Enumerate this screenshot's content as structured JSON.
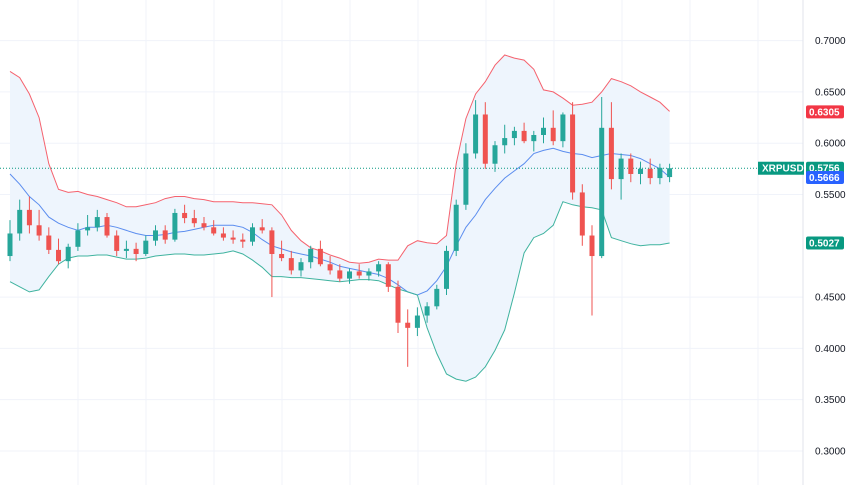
{
  "chart_data": {
    "type": "candlestick",
    "symbol": "XRPUSDT",
    "y_range": [
      0.2668,
      0.7396
    ],
    "y_ticks": [
      "0.7000",
      "0.6500",
      "0.6000",
      "0.5500",
      "0.4500",
      "0.4000",
      "0.3500",
      "0.3000"
    ],
    "grid": true,
    "price_badges": [
      {
        "label": "",
        "value": "0.6305",
        "y": 0.6305,
        "color": "#f23645"
      },
      {
        "label": "XRPUSDT",
        "value": "0.5756",
        "y": 0.5756,
        "color": "#089981"
      },
      {
        "label": "",
        "value": "0.5666",
        "y": 0.5666,
        "color": "#2962ff"
      },
      {
        "label": "",
        "value": "0.5027",
        "y": 0.5027,
        "color": "#089981"
      }
    ],
    "last_price": 0.5756,
    "colors": {
      "up": "#26a69a",
      "down": "#ef5350",
      "upper_band": "#f5626e",
      "middle_band": "#5b8def",
      "lower_band": "#3fb39f",
      "band_fill": "#eef5fd",
      "grid": "#f0f3fa",
      "last_price_line": "#089981"
    },
    "candles": [
      [
        0.49,
        0.525,
        0.485,
        0.512
      ],
      [
        0.512,
        0.545,
        0.505,
        0.535
      ],
      [
        0.535,
        0.548,
        0.512,
        0.52
      ],
      [
        0.52,
        0.535,
        0.505,
        0.51
      ],
      [
        0.51,
        0.518,
        0.492,
        0.496
      ],
      [
        0.496,
        0.507,
        0.482,
        0.485
      ],
      [
        0.485,
        0.502,
        0.478,
        0.499
      ],
      [
        0.499,
        0.522,
        0.495,
        0.515
      ],
      [
        0.515,
        0.53,
        0.51,
        0.518
      ],
      [
        0.518,
        0.535,
        0.514,
        0.528
      ],
      [
        0.528,
        0.532,
        0.508,
        0.51
      ],
      [
        0.51,
        0.515,
        0.49,
        0.495
      ],
      [
        0.495,
        0.505,
        0.488,
        0.497
      ],
      [
        0.497,
        0.503,
        0.485,
        0.492
      ],
      [
        0.492,
        0.51,
        0.49,
        0.505
      ],
      [
        0.505,
        0.52,
        0.5,
        0.515
      ],
      [
        0.515,
        0.52,
        0.502,
        0.506
      ],
      [
        0.506,
        0.536,
        0.504,
        0.532
      ],
      [
        0.532,
        0.54,
        0.522,
        0.527
      ],
      [
        0.527,
        0.535,
        0.518,
        0.522
      ],
      [
        0.522,
        0.528,
        0.515,
        0.518
      ],
      [
        0.518,
        0.525,
        0.51,
        0.512
      ],
      [
        0.512,
        0.518,
        0.505,
        0.508
      ],
      [
        0.508,
        0.515,
        0.502,
        0.506
      ],
      [
        0.506,
        0.512,
        0.498,
        0.504
      ],
      [
        0.504,
        0.522,
        0.5,
        0.518
      ],
      [
        0.518,
        0.526,
        0.512,
        0.515
      ],
      [
        0.515,
        0.518,
        0.45,
        0.492
      ],
      [
        0.492,
        0.505,
        0.485,
        0.488
      ],
      [
        0.488,
        0.495,
        0.472,
        0.476
      ],
      [
        0.476,
        0.488,
        0.47,
        0.484
      ],
      [
        0.484,
        0.5,
        0.478,
        0.497
      ],
      [
        0.497,
        0.505,
        0.48,
        0.482
      ],
      [
        0.482,
        0.49,
        0.472,
        0.476
      ],
      [
        0.476,
        0.482,
        0.465,
        0.468
      ],
      [
        0.468,
        0.478,
        0.463,
        0.475
      ],
      [
        0.475,
        0.482,
        0.468,
        0.471
      ],
      [
        0.471,
        0.478,
        0.466,
        0.475
      ],
      [
        0.475,
        0.485,
        0.47,
        0.482
      ],
      [
        0.482,
        0.484,
        0.455,
        0.46
      ],
      [
        0.46,
        0.466,
        0.415,
        0.425
      ],
      [
        0.425,
        0.438,
        0.382,
        0.42
      ],
      [
        0.42,
        0.44,
        0.412,
        0.432
      ],
      [
        0.432,
        0.445,
        0.425,
        0.441
      ],
      [
        0.441,
        0.462,
        0.438,
        0.458
      ],
      [
        0.458,
        0.5,
        0.452,
        0.495
      ],
      [
        0.495,
        0.545,
        0.49,
        0.54
      ],
      [
        0.54,
        0.6,
        0.535,
        0.59
      ],
      [
        0.59,
        0.642,
        0.585,
        0.628
      ],
      [
        0.628,
        0.64,
        0.575,
        0.58
      ],
      [
        0.58,
        0.602,
        0.572,
        0.598
      ],
      [
        0.598,
        0.618,
        0.59,
        0.605
      ],
      [
        0.605,
        0.616,
        0.598,
        0.612
      ],
      [
        0.612,
        0.62,
        0.6,
        0.602
      ],
      [
        0.602,
        0.612,
        0.592,
        0.608
      ],
      [
        0.608,
        0.625,
        0.6,
        0.615
      ],
      [
        0.615,
        0.632,
        0.598,
        0.602
      ],
      [
        0.602,
        0.63,
        0.596,
        0.628
      ],
      [
        0.628,
        0.64,
        0.545,
        0.552
      ],
      [
        0.552,
        0.56,
        0.5,
        0.51
      ],
      [
        0.51,
        0.52,
        0.432,
        0.49
      ],
      [
        0.49,
        0.645,
        0.488,
        0.615
      ],
      [
        0.615,
        0.64,
        0.555,
        0.565
      ],
      [
        0.565,
        0.59,
        0.545,
        0.585
      ],
      [
        0.585,
        0.59,
        0.562,
        0.57
      ],
      [
        0.57,
        0.582,
        0.56,
        0.575
      ],
      [
        0.575,
        0.585,
        0.56,
        0.566
      ],
      [
        0.566,
        0.58,
        0.56,
        0.576
      ],
      [
        0.567,
        0.58,
        0.562,
        0.5756
      ]
    ],
    "bollinger": {
      "upper": [
        0.67,
        0.664,
        0.648,
        0.625,
        0.58,
        0.555,
        0.552,
        0.553,
        0.55,
        0.548,
        0.545,
        0.542,
        0.538,
        0.538,
        0.54,
        0.542,
        0.546,
        0.548,
        0.548,
        0.546,
        0.545,
        0.543,
        0.543,
        0.543,
        0.542,
        0.542,
        0.541,
        0.54,
        0.53,
        0.515,
        0.505,
        0.498,
        0.495,
        0.491,
        0.488,
        0.484,
        0.483,
        0.484,
        0.487,
        0.486,
        0.486,
        0.5,
        0.505,
        0.503,
        0.502,
        0.51,
        0.58,
        0.624,
        0.648,
        0.66,
        0.676,
        0.686,
        0.683,
        0.681,
        0.672,
        0.652,
        0.65,
        0.644,
        0.637,
        0.638,
        0.64,
        0.65,
        0.663,
        0.66,
        0.656,
        0.65,
        0.645,
        0.64,
        0.631
      ],
      "middle": [
        0.57,
        0.56,
        0.548,
        0.54,
        0.528,
        0.522,
        0.518,
        0.515,
        0.518,
        0.518,
        0.52,
        0.518,
        0.515,
        0.512,
        0.51,
        0.51,
        0.511,
        0.513,
        0.514,
        0.516,
        0.518,
        0.52,
        0.52,
        0.52,
        0.518,
        0.513,
        0.506,
        0.5,
        0.497,
        0.494,
        0.492,
        0.49,
        0.487,
        0.484,
        0.48,
        0.478,
        0.476,
        0.474,
        0.472,
        0.468,
        0.462,
        0.455,
        0.452,
        0.456,
        0.466,
        0.48,
        0.5,
        0.518,
        0.53,
        0.545,
        0.556,
        0.566,
        0.573,
        0.58,
        0.59,
        0.593,
        0.595,
        0.592,
        0.59,
        0.589,
        0.586,
        0.588,
        0.59,
        0.589,
        0.588,
        0.585,
        0.58,
        0.575,
        0.567
      ],
      "lower": [
        0.465,
        0.46,
        0.455,
        0.457,
        0.47,
        0.482,
        0.488,
        0.49,
        0.49,
        0.491,
        0.491,
        0.489,
        0.487,
        0.487,
        0.488,
        0.49,
        0.491,
        0.492,
        0.492,
        0.491,
        0.491,
        0.492,
        0.493,
        0.495,
        0.492,
        0.486,
        0.479,
        0.47,
        0.47,
        0.469,
        0.469,
        0.468,
        0.467,
        0.466,
        0.465,
        0.466,
        0.467,
        0.467,
        0.466,
        0.462,
        0.458,
        0.455,
        0.452,
        0.42,
        0.395,
        0.375,
        0.37,
        0.368,
        0.372,
        0.382,
        0.398,
        0.418,
        0.454,
        0.493,
        0.508,
        0.512,
        0.52,
        0.543,
        0.54,
        0.538,
        0.537,
        0.535,
        0.508,
        0.505,
        0.502,
        0.5,
        0.501,
        0.501,
        0.5027
      ]
    }
  }
}
